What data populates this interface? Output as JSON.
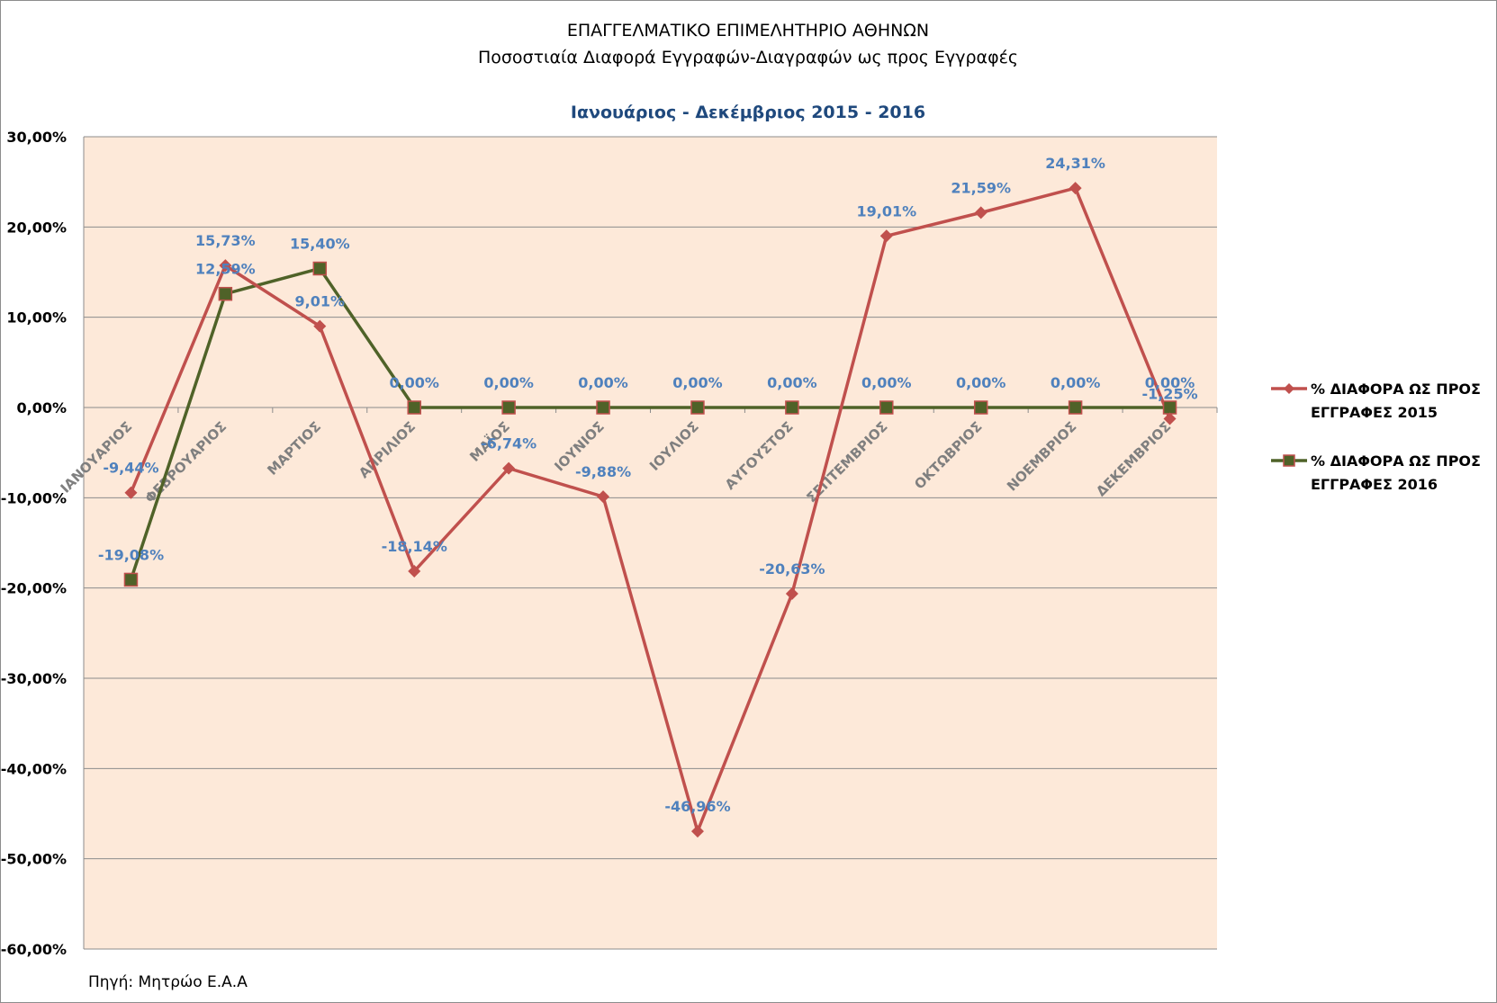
{
  "chart_data": {
    "type": "line",
    "title": "ΕΠΑΓΓΕΛΜΑΤΙΚΟ ΕΠΙΜΕΛΗΤΗΡΙΟ ΑΘΗΝΩΝ",
    "title_line2": "Ποσοστιαία Διαφορά Εγγραφών-Διαγραφών ως προς Εγγραφές",
    "subtitle": "Ιανουάριος - Δεκέμβριος 2015 - 2016",
    "source": "Πηγή: Μητρώο Ε.Α.Α",
    "categories": [
      "ΙΑΝΟΥΑΡΙΟΣ",
      "ΦΕΒΡΟΥΑΡΙΟΣ",
      "ΜΑΡΤΙΟΣ",
      "ΑΠΡΙΛΙΟΣ",
      "ΜΑΪΟΣ",
      "ΙΟΥΝΙΟΣ",
      "ΙΟΥΛΙΟΣ",
      "ΑΥΓΟΥΣΤΟΣ",
      "ΣΕΠΤΕΜΒΡΙΟΣ",
      "ΟΚΤΩΒΡΙΟΣ",
      "ΝΟΕΜΒΡΙΟΣ",
      "ΔΕΚΕΜΒΡΙΟΣ"
    ],
    "ylim": [
      -60,
      30
    ],
    "y_ticks": [
      {
        "value": 30,
        "label": "30,00%"
      },
      {
        "value": 20,
        "label": "20,00%"
      },
      {
        "value": 10,
        "label": "10,00%"
      },
      {
        "value": 0,
        "label": "0,00%"
      },
      {
        "value": -10,
        "label": "-10,00%"
      },
      {
        "value": -20,
        "label": "-20,00%"
      },
      {
        "value": -30,
        "label": "-30,00%"
      },
      {
        "value": -40,
        "label": "-40,00%"
      },
      {
        "value": -50,
        "label": "-50,00%"
      },
      {
        "value": -60,
        "label": "-60,00%"
      }
    ],
    "grid": true,
    "legend_position": "right",
    "plot_background": "#fde9d9",
    "series": [
      {
        "name": "% ΔΙΑΦΟΡΑ ΩΣ ΠΡΟΣ ΕΓΓΡΑΦΕΣ 2015",
        "legend_lines": [
          "% ΔΙΑΦΟΡΑ ΩΣ ΠΡΟΣ",
          "ΕΓΓΡΑΦΕΣ 2015"
        ],
        "color": "#c0504d",
        "marker": "diamond",
        "values": [
          -9.44,
          15.73,
          9.01,
          -18.14,
          -6.74,
          -9.88,
          -46.96,
          -20.63,
          19.01,
          21.59,
          24.31,
          -1.25
        ],
        "labels": [
          "-9,44%",
          "15,73%",
          "9,01%",
          "-18,14%",
          "-6,74%",
          "-9,88%",
          "-46,96%",
          "-20,63%",
          "19,01%",
          "21,59%",
          "24,31%",
          "-1,25%"
        ]
      },
      {
        "name": "% ΔΙΑΦΟΡΑ ΩΣ ΠΡΟΣ ΕΓΓΡΑΦΕΣ 2016",
        "legend_lines": [
          "% ΔΙΑΦΟΡΑ ΩΣ ΠΡΟΣ",
          "ΕΓΓΡΑΦΕΣ 2016"
        ],
        "color": "#4f6228",
        "marker_fill": "#4f6228",
        "marker_stroke": "#c0504d",
        "marker": "square",
        "values": [
          -19.08,
          12.59,
          15.4,
          0,
          0,
          0,
          0,
          0,
          0,
          0,
          0,
          0
        ],
        "labels": [
          "-19,08%",
          "12,59%",
          "15,40%",
          "0,00%",
          "0,00%",
          "0,00%",
          "0,00%",
          "0,00%",
          "0,00%",
          "0,00%",
          "0,00%",
          "0,00%"
        ]
      }
    ]
  }
}
